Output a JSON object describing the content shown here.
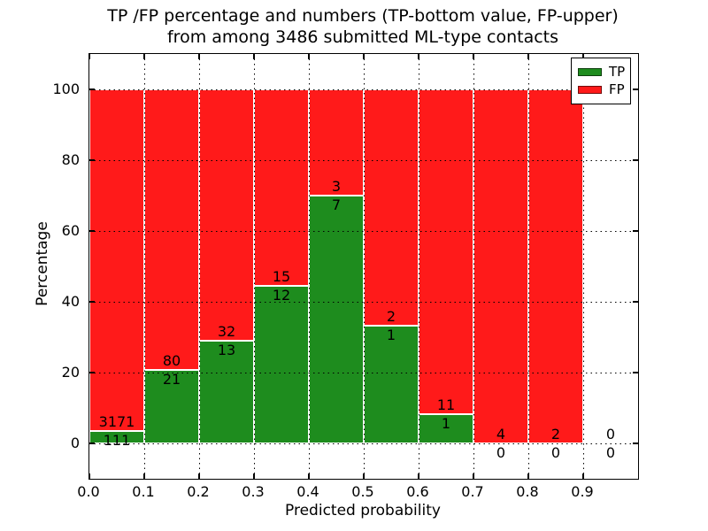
{
  "title": {
    "line1": "TP /FP percentage and numbers (TP-bottom value, FP-upper)",
    "line2": "from among 3486 submitted ML-type contacts"
  },
  "axes": {
    "xlabel": "Predicted probability",
    "ylabel": "Percentage",
    "x_ticks": [
      "0.0",
      "0.1",
      "0.2",
      "0.3",
      "0.4",
      "0.5",
      "0.6",
      "0.7",
      "0.8",
      "0.9"
    ],
    "y_ticks": [
      "0",
      "20",
      "40",
      "60",
      "80",
      "100"
    ],
    "xlim": [
      0.0,
      1.0
    ],
    "ylim": [
      -10,
      110
    ],
    "grid_style": "dotted"
  },
  "legend": {
    "position": "upper-right",
    "entries": [
      {
        "label": "TP",
        "color": "#1e8c1e"
      },
      {
        "label": "FP",
        "color": "#ff1a1a"
      }
    ]
  },
  "colors": {
    "tp": "#1e8c1e",
    "fp": "#ff1a1a",
    "grid": "#000000",
    "text": "#000000",
    "background": "#ffffff",
    "bar_edge": "#ffffff"
  },
  "chart_data": {
    "type": "bar",
    "stacked": true,
    "title": "TP /FP percentage and numbers (TP-bottom value, FP-upper) from among 3486 submitted ML-type contacts",
    "total_contacts": 3486,
    "xlabel": "Predicted probability",
    "ylabel": "Percentage",
    "xlim": [
      0.0,
      1.0
    ],
    "ylim": [
      -10,
      110
    ],
    "bin_width": 0.1,
    "grid": true,
    "legend_position": "upper right",
    "annotation_rule": "TP count printed below green/red boundary, FP count printed above it",
    "bins": [
      {
        "x_start": 0.0,
        "x_end": 0.1,
        "tp_count": 111,
        "fp_count": 3171,
        "tp_pct": 3.38,
        "fp_pct": 96.62,
        "has_bar": true
      },
      {
        "x_start": 0.1,
        "x_end": 0.2,
        "tp_count": 21,
        "fp_count": 80,
        "tp_pct": 20.79,
        "fp_pct": 79.21,
        "has_bar": true
      },
      {
        "x_start": 0.2,
        "x_end": 0.3,
        "tp_count": 13,
        "fp_count": 32,
        "tp_pct": 28.89,
        "fp_pct": 71.11,
        "has_bar": true
      },
      {
        "x_start": 0.3,
        "x_end": 0.4,
        "tp_count": 12,
        "fp_count": 15,
        "tp_pct": 44.44,
        "fp_pct": 55.56,
        "has_bar": true
      },
      {
        "x_start": 0.4,
        "x_end": 0.5,
        "tp_count": 7,
        "fp_count": 3,
        "tp_pct": 70.0,
        "fp_pct": 30.0,
        "has_bar": true
      },
      {
        "x_start": 0.5,
        "x_end": 0.6,
        "tp_count": 1,
        "fp_count": 2,
        "tp_pct": 33.33,
        "fp_pct": 66.67,
        "has_bar": true
      },
      {
        "x_start": 0.6,
        "x_end": 0.7,
        "tp_count": 1,
        "fp_count": 11,
        "tp_pct": 8.33,
        "fp_pct": 91.67,
        "has_bar": true
      },
      {
        "x_start": 0.7,
        "x_end": 0.8,
        "tp_count": 0,
        "fp_count": 4,
        "tp_pct": 0.0,
        "fp_pct": 100.0,
        "has_bar": true
      },
      {
        "x_start": 0.8,
        "x_end": 0.9,
        "tp_count": 0,
        "fp_count": 2,
        "tp_pct": 0.0,
        "fp_pct": 100.0,
        "has_bar": true
      },
      {
        "x_start": 0.9,
        "x_end": 1.0,
        "tp_count": 0,
        "fp_count": 0,
        "tp_pct": 0.0,
        "fp_pct": 0.0,
        "has_bar": false
      }
    ]
  }
}
